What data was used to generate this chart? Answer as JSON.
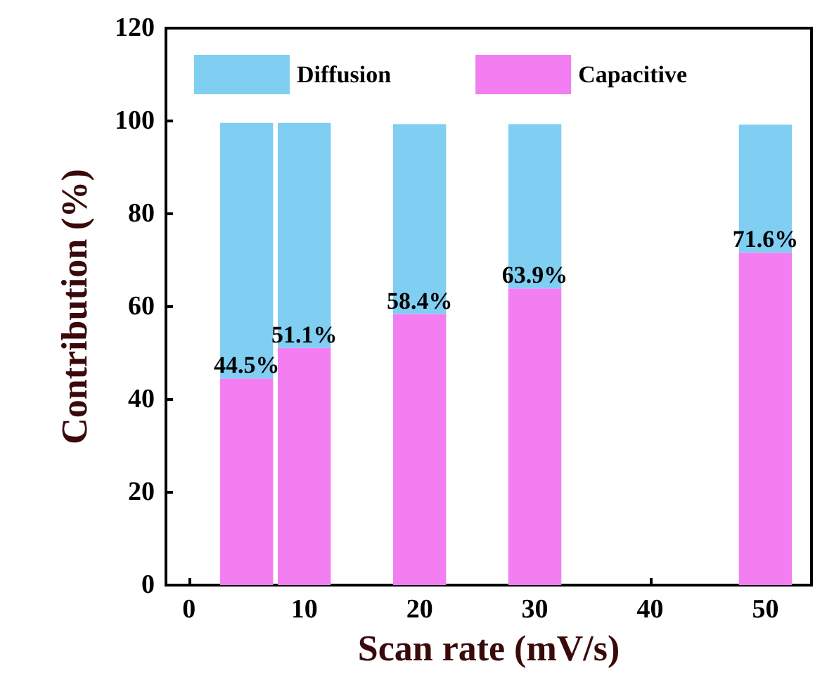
{
  "chart_data": {
    "type": "bar",
    "stacked": true,
    "xlabel": "Scan rate (mV/s)",
    "ylabel": "Contribution (%)",
    "x": [
      5,
      10,
      20,
      30,
      50
    ],
    "series": [
      {
        "name": "Capacitive",
        "color": "#f27ef2",
        "values": [
          44.5,
          51.1,
          58.4,
          63.9,
          71.6
        ],
        "value_labels": [
          "44.5%",
          "51.1%",
          "58.4%",
          "63.9%",
          "71.6%"
        ]
      },
      {
        "name": "Diffusion",
        "color": "#80cef2",
        "values": [
          55.1,
          48.5,
          40.9,
          35.4,
          27.6
        ]
      }
    ],
    "xlim": [
      -2,
      54
    ],
    "xticks": [
      0,
      10,
      20,
      30,
      40,
      50
    ],
    "ylim": [
      0,
      120
    ],
    "yticks": [
      0,
      20,
      40,
      60,
      80,
      100,
      120
    ],
    "grid": false,
    "legend": "top"
  }
}
